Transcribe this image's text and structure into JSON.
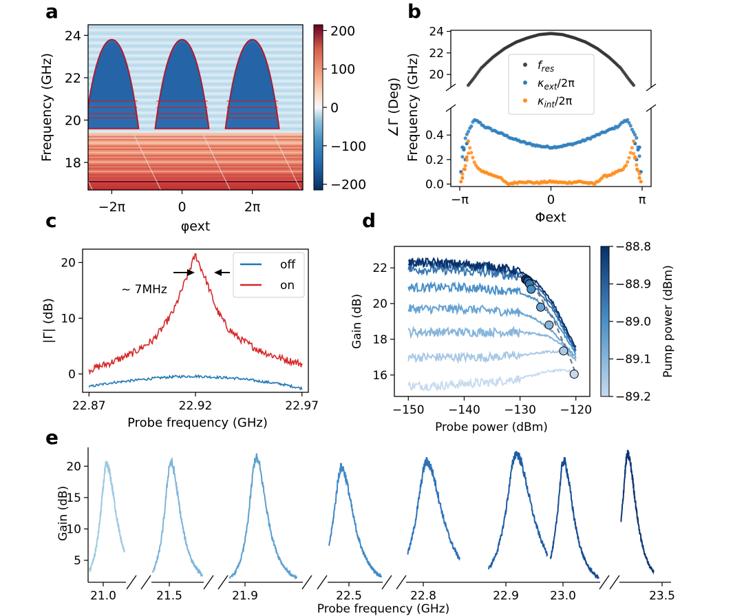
{
  "chart_data": [
    {
      "panel": "a",
      "type": "heatmap",
      "xlabel": "φext",
      "ylabel": "Frequency (GHz)",
      "xticks": [
        "−2π",
        "0",
        "2π"
      ],
      "xtick_values": [
        -6.283,
        0,
        6.283
      ],
      "xlim": [
        -8.4,
        10.8
      ],
      "yticks": [
        "18",
        "20",
        "22",
        "24"
      ],
      "ylim": [
        16.7,
        24.5
      ],
      "arches": {
        "period": 6.283,
        "centers": [
          -6.283,
          0,
          6.283
        ],
        "peak_ghz": 23.8,
        "half_width_at_base": 2.4,
        "base_ghz": 19.6
      },
      "lower_band_ghz": [
        16.7,
        19.4
      ],
      "colorbar": {
        "label": "",
        "ticks": [
          "200",
          "100",
          "0",
          "−100",
          "−200"
        ],
        "tick_values": [
          200,
          100,
          0,
          -100,
          -200
        ],
        "range": [
          -215,
          215
        ]
      }
    },
    {
      "panel": "b",
      "type": "scatter",
      "xlabel": "Φext",
      "ylabel_left": "∠Γ (Deg)",
      "ylabel": "Frequency (GHz)",
      "xticks": [
        "−π",
        "0",
        "π"
      ],
      "xtick_values": [
        -3.1416,
        0,
        3.1416
      ],
      "xlim": [
        -3.45,
        3.45
      ],
      "upper": {
        "yticks": [
          "20",
          "22",
          "24"
        ],
        "ylim": [
          18.8,
          24.1
        ]
      },
      "lower": {
        "yticks": [
          "0.0",
          "0.2",
          "0.4"
        ],
        "ylim": [
          -0.02,
          0.62
        ]
      },
      "legend": [
        "f_res",
        "κ_ext/2π",
        "κ_int/2π"
      ],
      "series": [
        {
          "name": "f_res",
          "x": [
            -2.85,
            -2.7,
            -2.4,
            -2.0,
            -1.6,
            -1.2,
            -0.8,
            -0.4,
            0,
            0.4,
            0.8,
            1.2,
            1.6,
            2.0,
            2.4,
            2.7,
            2.85
          ],
          "y": [
            19.0,
            19.5,
            20.6,
            21.6,
            22.4,
            23.0,
            23.4,
            23.7,
            23.8,
            23.7,
            23.4,
            23.0,
            22.4,
            21.6,
            20.6,
            19.5,
            19.0
          ]
        },
        {
          "name": "κ_ext/2π",
          "x": [
            -3.05,
            -2.95,
            -2.8,
            -2.65,
            -2.5,
            -2.3,
            -2.0,
            -1.6,
            -1.2,
            -0.8,
            -0.4,
            0,
            0.4,
            0.8,
            1.2,
            1.6,
            2.0,
            2.3,
            2.5,
            2.65,
            2.8,
            2.95,
            3.05
          ],
          "y": [
            0.22,
            0.37,
            0.45,
            0.52,
            0.51,
            0.47,
            0.44,
            0.4,
            0.36,
            0.33,
            0.31,
            0.3,
            0.31,
            0.33,
            0.36,
            0.4,
            0.44,
            0.47,
            0.51,
            0.52,
            0.45,
            0.37,
            0.22
          ]
        },
        {
          "name": "κ_int/2π",
          "x": [
            -3.05,
            -2.95,
            -2.8,
            -2.65,
            -2.5,
            -2.3,
            -2.1,
            -1.8,
            -1.5,
            -1.0,
            -0.5,
            0,
            0.5,
            1.0,
            1.5,
            1.8,
            2.1,
            2.3,
            2.5,
            2.65,
            2.8,
            2.95,
            3.05
          ],
          "y": [
            0.08,
            0.15,
            0.3,
            0.18,
            0.12,
            0.1,
            0.08,
            0.06,
            0.0,
            0.02,
            0.01,
            0.02,
            0.01,
            0.02,
            0.0,
            0.06,
            0.08,
            0.1,
            0.12,
            0.18,
            0.3,
            0.15,
            0.08
          ]
        }
      ]
    },
    {
      "panel": "c",
      "type": "line",
      "xlabel": "Probe frequency (GHz)",
      "ylabel": "|Γ| (dB)",
      "xticks": [
        "22.87",
        "22.92",
        "22.97"
      ],
      "xtick_values": [
        22.87,
        22.92,
        22.97
      ],
      "xlim": [
        22.867,
        22.973
      ],
      "yticks": [
        "0",
        "10",
        "20"
      ],
      "ytick_values": [
        0,
        10,
        20
      ],
      "ylim": [
        -3.3,
        22.4
      ],
      "annotation": "~ 7MHz",
      "series": [
        {
          "name": "off",
          "color": "#1f77b4",
          "x": [
            22.87,
            22.88,
            22.89,
            22.9,
            22.91,
            22.92,
            22.93,
            22.94,
            22.95,
            22.96,
            22.97
          ],
          "y": [
            -2.3,
            -1.6,
            -1.2,
            -0.8,
            -0.5,
            -0.4,
            -0.6,
            -0.8,
            -1.3,
            -1.8,
            -2.6
          ]
        },
        {
          "name": "on",
          "color": "#d62728",
          "x": [
            22.87,
            22.88,
            22.89,
            22.9,
            22.905,
            22.91,
            22.915,
            22.92,
            22.925,
            22.93,
            22.935,
            22.94,
            22.95,
            22.96,
            22.97
          ],
          "y": [
            0.7,
            2.0,
            3.6,
            6.0,
            8.5,
            11.5,
            16.5,
            21.4,
            16.8,
            11.5,
            8.3,
            6.5,
            4.2,
            2.8,
            1.8
          ]
        }
      ]
    },
    {
      "panel": "d",
      "type": "line",
      "xlabel": "Probe power (dBm)",
      "ylabel": "Gain (dB)",
      "xticks": [
        "−150",
        "−140",
        "−130",
        "−120"
      ],
      "xtick_values": [
        -150,
        -140,
        -130,
        -120
      ],
      "xlim": [
        -152.5,
        -117.5
      ],
      "yticks": [
        "16",
        "18",
        "20",
        "22"
      ],
      "ytick_values": [
        16,
        18,
        20,
        22
      ],
      "ylim": [
        14.8,
        23.2
      ],
      "colorbar": {
        "label": "Pump power (dBm)",
        "ticks": [
          "−88.8",
          "−88.9",
          "−89.0",
          "−89.1",
          "−89.2"
        ],
        "tick_values": [
          -88.8,
          -88.9,
          -89.0,
          -89.1,
          -89.2
        ],
        "range": [
          -89.2,
          -88.8
        ]
      },
      "series": [
        {
          "name": "",
          "pump": -89.2,
          "x": [
            -150,
            -145,
            -140,
            -135,
            -130,
            -125,
            -122,
            -120
          ],
          "y": [
            15.4,
            15.4,
            15.5,
            15.6,
            15.8,
            16.2,
            16.3,
            16.1
          ]
        },
        {
          "name": "",
          "pump": -89.15,
          "x": [
            -150,
            -145,
            -140,
            -135,
            -130,
            -125,
            -122,
            -120
          ],
          "y": [
            17.0,
            17.0,
            17.0,
            17.0,
            17.1,
            17.3,
            17.3,
            16.9
          ]
        },
        {
          "name": "",
          "pump": -89.1,
          "x": [
            -150,
            -145,
            -140,
            -135,
            -130,
            -125,
            -122,
            -120
          ],
          "y": [
            18.4,
            18.4,
            18.4,
            18.4,
            18.4,
            18.2,
            17.6,
            16.8
          ]
        },
        {
          "name": "",
          "pump": -89.05,
          "x": [
            -150,
            -145,
            -140,
            -135,
            -130,
            -127,
            -124,
            -120
          ],
          "y": [
            19.7,
            19.7,
            19.7,
            19.6,
            19.5,
            19.1,
            18.4,
            17.0
          ]
        },
        {
          "name": "",
          "pump": -89.0,
          "x": [
            -150,
            -145,
            -140,
            -135,
            -130,
            -127,
            -124,
            -120
          ],
          "y": [
            20.9,
            20.9,
            20.9,
            20.8,
            20.6,
            20.2,
            19.2,
            17.2
          ]
        },
        {
          "name": "",
          "pump": -88.95,
          "x": [
            -150,
            -145,
            -140,
            -135,
            -130,
            -127,
            -124,
            -120
          ],
          "y": [
            21.9,
            21.9,
            21.8,
            21.7,
            21.5,
            20.8,
            19.6,
            17.3
          ]
        },
        {
          "name": "",
          "pump": -88.9,
          "x": [
            -150,
            -145,
            -140,
            -135,
            -130,
            -127,
            -124,
            -120
          ],
          "y": [
            22.2,
            22.2,
            22.1,
            22.0,
            21.7,
            21.0,
            19.8,
            17.4
          ]
        },
        {
          "name": "",
          "pump": -88.8,
          "x": [
            -150,
            -145,
            -140,
            -135,
            -130,
            -127,
            -124,
            -120
          ],
          "y": [
            22.3,
            22.3,
            22.2,
            22.1,
            21.8,
            21.2,
            20.0,
            17.5
          ]
        }
      ],
      "markers": {
        "x": [
          -129,
          -128.6,
          -128.3,
          -128.0,
          -126.3,
          -124.8,
          -122.2,
          -120.3
        ],
        "y": [
          21.35,
          21.25,
          21.1,
          20.8,
          19.8,
          18.8,
          17.35,
          16.05
        ]
      },
      "dashed_fit": {
        "x": [
          -130,
          -127,
          -124,
          -121,
          -119.8
        ],
        "y": [
          21.6,
          20.7,
          19.1,
          16.9,
          15.9
        ]
      }
    },
    {
      "panel": "e",
      "type": "line",
      "xlabel": "Probe frequency (GHz)",
      "ylabel": "Gain (dB)",
      "xticks": [
        "21.0",
        "21.5",
        "21.9",
        "22.5",
        "22.8",
        "22.9",
        "23.0",
        "23.5"
      ],
      "yticks": [
        "5",
        "10",
        "15",
        "20"
      ],
      "ytick_values": [
        5,
        10,
        15,
        20
      ],
      "ylim": [
        1.5,
        23
      ],
      "peaks": [
        {
          "label": "21.0",
          "gain": 20.1,
          "width_ghz": 0.025,
          "color": "#9ecae1"
        },
        {
          "label": "21.5",
          "gain": 20.6,
          "width_ghz": 0.025,
          "color": "#7fb5da"
        },
        {
          "label": "21.9",
          "gain": 21.3,
          "width_ghz": 0.03,
          "color": "#5a9fd0"
        },
        {
          "label": "22.5",
          "gain": 19.8,
          "width_ghz": 0.035,
          "color": "#3f88c5"
        },
        {
          "label": "22.8",
          "gain": 20.7,
          "width_ghz": 0.05,
          "color": "#2e72b8"
        },
        {
          "label": "22.9",
          "gain": 22.0,
          "width_ghz": 0.05,
          "color": "#1f5ea6"
        },
        {
          "label": "23.0",
          "gain": 20.8,
          "width_ghz": 0.025,
          "color": "#174c92"
        },
        {
          "label": "23.5",
          "gain": 21.8,
          "width_ghz": 0.02,
          "color": "#0d3474"
        }
      ]
    }
  ],
  "panels": {
    "a": "a",
    "b": "b",
    "c": "c",
    "d": "d",
    "e": "e"
  },
  "colors": {
    "cmap_low": "#053061",
    "cmap_mid": "#f7f7f7",
    "cmap_high": "#67001f",
    "blue": "#1f77b4",
    "red": "#d62728",
    "orange": "#ff7f0e",
    "black": "#222222",
    "dash": "#777777"
  }
}
